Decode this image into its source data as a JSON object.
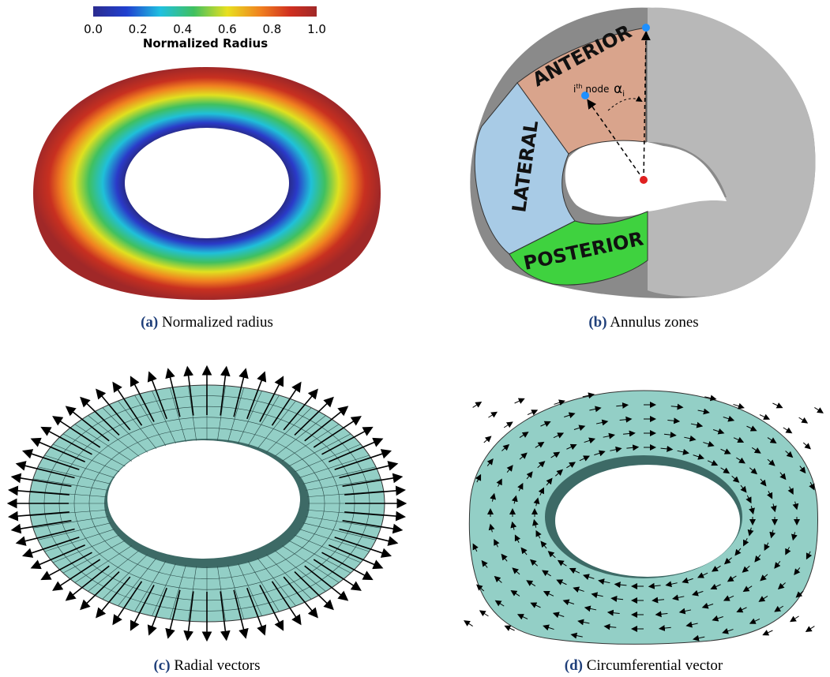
{
  "panels": [
    {
      "label": "(a)",
      "caption": "Normalized radius",
      "colorbar": {
        "title": "Normalized Radius",
        "ticks": [
          "0.0",
          "0.2",
          "0.4",
          "0.6",
          "0.8",
          "1.0"
        ]
      }
    },
    {
      "label": "(b)",
      "caption": "Annulus zones",
      "zones": [
        "ANTERIOR",
        "LATERAL",
        "POSTERIOR"
      ],
      "node_label": {
        "base": "i",
        "sup": "th",
        "rest": "node"
      },
      "angle_label": {
        "base": "α",
        "sub": "i"
      }
    },
    {
      "label": "(c)",
      "caption": "Radial vectors"
    },
    {
      "label": "(d)",
      "caption": "Circumferential vector"
    }
  ]
}
